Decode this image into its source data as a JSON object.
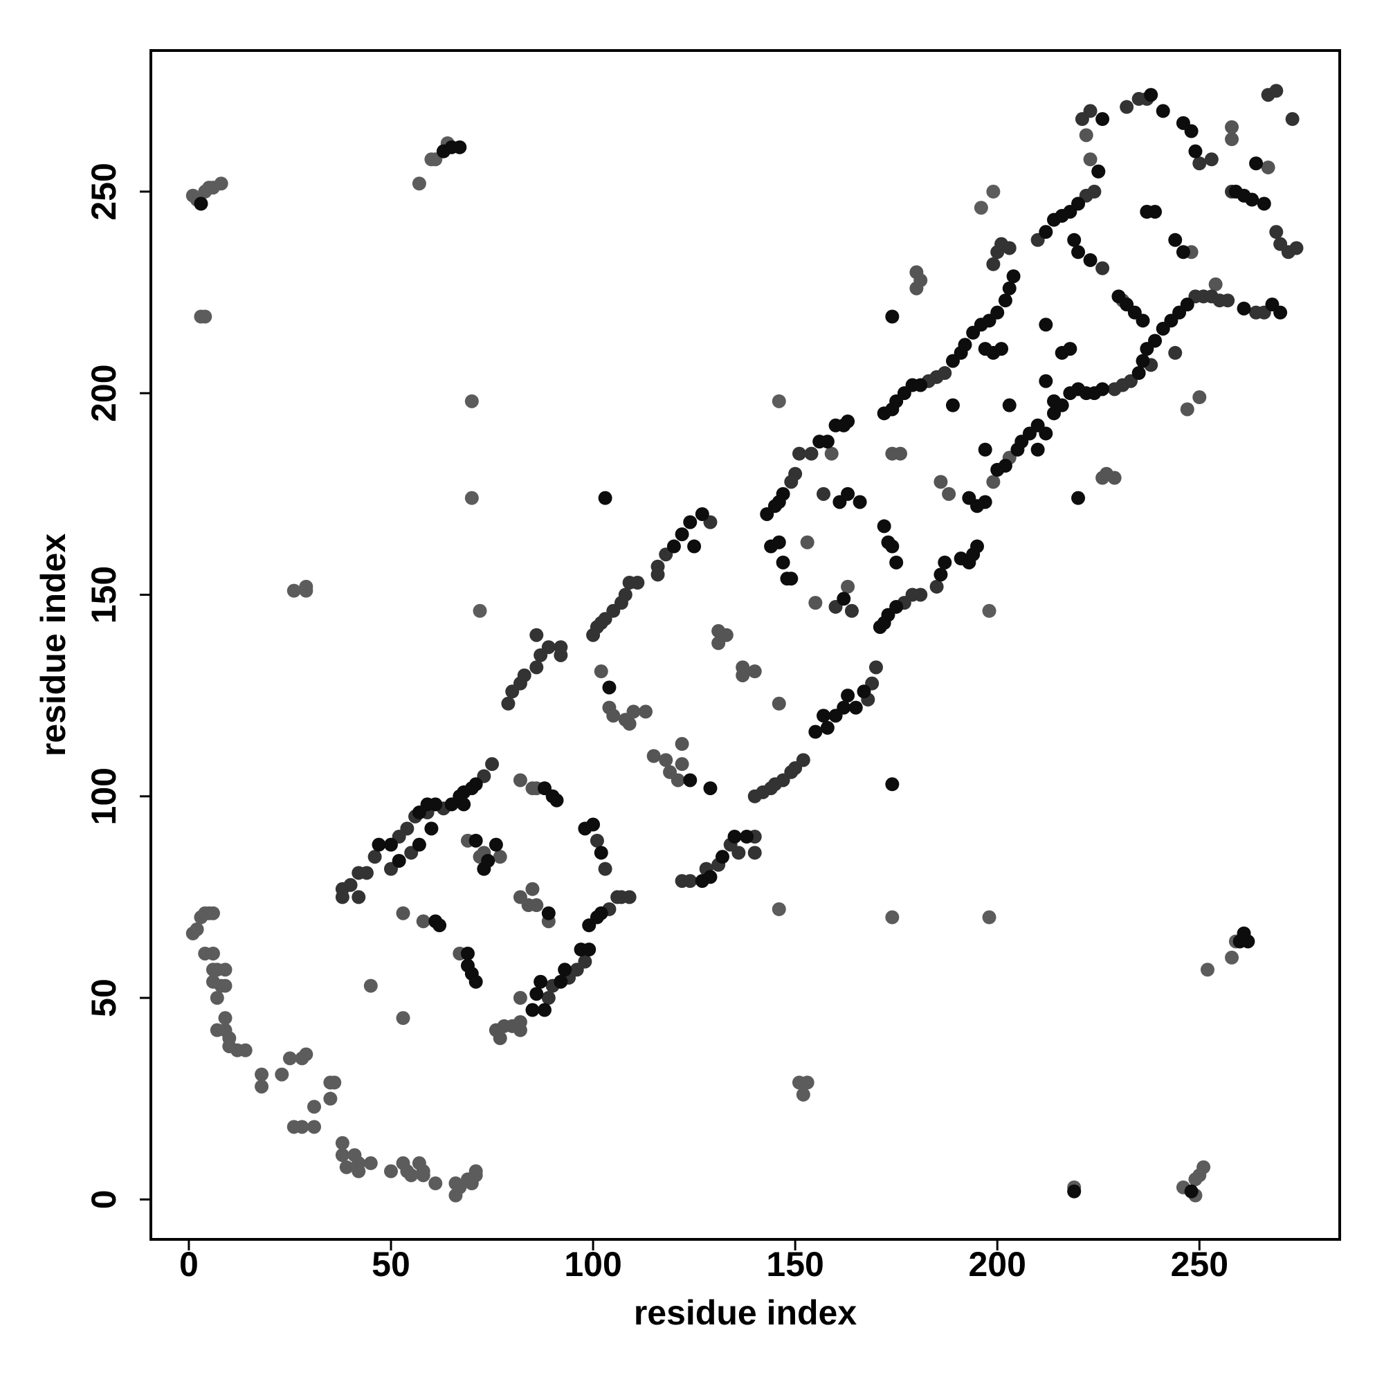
{
  "chart_data": {
    "type": "scatter",
    "xlabel": "residue index",
    "ylabel": "residue index",
    "xlim": [
      -9.4,
      284.7
    ],
    "ylim": [
      -9.9,
      285
    ],
    "xticks": [
      0,
      50,
      100,
      150,
      200,
      250
    ],
    "yticks": [
      0,
      50,
      100,
      150,
      200,
      250
    ],
    "series": [
      {
        "color": "#5c5c5c",
        "x": [
          1,
          2,
          3,
          4,
          5,
          6,
          4,
          6,
          6,
          7,
          6,
          8,
          9,
          9,
          7,
          7,
          9,
          9,
          10,
          10,
          12,
          14,
          18,
          18,
          23,
          25,
          28,
          29,
          26,
          28,
          31,
          31,
          35,
          36,
          35,
          38,
          38,
          39,
          41,
          42,
          42,
          45,
          50,
          53,
          54,
          55,
          57,
          58,
          58,
          61,
          66,
          66,
          67,
          69,
          70,
          71,
          71,
          1,
          2,
          3,
          4,
          5,
          6,
          8,
          3,
          4,
          57,
          60,
          61,
          63,
          64,
          26,
          29,
          29,
          70,
          70,
          72,
          219,
          246,
          249,
          249,
          250,
          251,
          252,
          258,
          259,
          152,
          153,
          151,
          146,
          174,
          198,
          198,
          146,
          196,
          199,
          45,
          53
        ],
        "values": [
          66,
          67,
          70,
          71,
          71,
          71,
          61,
          61,
          57,
          57,
          54,
          53,
          57,
          53,
          50,
          42,
          42,
          45,
          40,
          38,
          37,
          37,
          31,
          28,
          31,
          35,
          35,
          36,
          18,
          18,
          18,
          23,
          29,
          29,
          25,
          14,
          11,
          8,
          11,
          9,
          7,
          9,
          7,
          9,
          7,
          6,
          9,
          6,
          7,
          4,
          1,
          4,
          3,
          5,
          4,
          6,
          7,
          249,
          248,
          247,
          250,
          251,
          251,
          252,
          219,
          219,
          252,
          258,
          258,
          260,
          262,
          151,
          152,
          151,
          198,
          174,
          146,
          3,
          3,
          1,
          5,
          6,
          8,
          57,
          60,
          64,
          26,
          29,
          29,
          72,
          70,
          70,
          146,
          198,
          246,
          250,
          53,
          45
        ]
      },
      {
        "color": "#555555",
        "x": [
          53,
          58,
          67,
          69,
          72,
          73,
          77,
          82,
          85,
          86,
          82,
          84,
          85,
          86,
          89,
          76,
          77,
          78,
          80,
          82,
          82,
          82,
          102,
          104,
          105,
          108,
          109,
          110,
          113,
          115,
          118,
          119,
          122,
          122,
          121,
          131,
          133,
          131,
          137,
          140,
          137,
          146,
          155,
          163,
          153,
          159,
          174,
          176,
          180,
          180,
          181,
          186,
          188,
          199,
          203,
          222,
          223,
          225,
          258,
          258,
          267,
          226,
          229,
          227,
          254,
          247,
          250,
          231,
          237,
          248
        ],
        "values": [
          71,
          69,
          61,
          89,
          85,
          86,
          85,
          104,
          102,
          102,
          75,
          73,
          77,
          73,
          69,
          42,
          40,
          43,
          43,
          42,
          44,
          50,
          131,
          122,
          120,
          119,
          118,
          121,
          121,
          110,
          109,
          106,
          108,
          113,
          104,
          141,
          140,
          138,
          132,
          131,
          130,
          123,
          148,
          152,
          163,
          185,
          185,
          185,
          230,
          226,
          228,
          178,
          175,
          178,
          184,
          264,
          258,
          255,
          266,
          263,
          256,
          179,
          179,
          180,
          227,
          196,
          199,
          223,
          245,
          235
        ]
      },
      {
        "color": "#333333",
        "x": [
          38,
          40,
          42,
          44,
          46,
          52,
          54,
          56,
          38,
          42,
          50,
          55,
          73,
          75,
          79,
          80,
          82,
          83,
          86,
          87,
          89,
          92,
          92,
          86,
          100,
          101,
          102,
          103,
          105,
          107,
          108,
          109,
          111,
          122,
          124,
          128,
          131,
          134,
          136,
          140,
          140,
          140,
          142,
          144,
          145,
          147,
          149,
          150,
          152,
          116,
          118,
          116,
          129,
          149,
          150,
          151,
          154,
          157,
          160,
          164,
          168,
          169,
          170,
          177,
          179,
          181,
          185,
          183,
          185,
          187,
          199,
          200,
          201,
          203,
          210,
          222,
          224,
          221,
          223,
          226,
          229,
          231,
          233,
          249,
          251,
          253,
          255,
          257,
          264,
          266,
          232,
          235,
          237,
          250,
          253,
          258,
          269,
          270,
          272,
          274,
          267,
          269,
          273,
          238,
          244,
          96,
          94,
          98,
          104,
          106,
          107,
          109,
          101,
          103,
          63,
          59,
          90,
          89
        ],
        "values": [
          77,
          78,
          81,
          81,
          85,
          90,
          92,
          95,
          75,
          75,
          82,
          86,
          105,
          108,
          123,
          126,
          128,
          130,
          132,
          135,
          137,
          135,
          137,
          140,
          140,
          142,
          143,
          144,
          146,
          148,
          150,
          153,
          153,
          79,
          79,
          82,
          83,
          88,
          86,
          90,
          86,
          100,
          101,
          102,
          103,
          104,
          106,
          107,
          109,
          157,
          160,
          155,
          168,
          178,
          180,
          185,
          185,
          175,
          147,
          146,
          124,
          128,
          132,
          148,
          150,
          150,
          152,
          203,
          204,
          205,
          232,
          235,
          237,
          236,
          238,
          249,
          250,
          268,
          270,
          231,
          201,
          202,
          203,
          224,
          224,
          224,
          223,
          223,
          220,
          220,
          271,
          273,
          273,
          257,
          258,
          250,
          240,
          237,
          235,
          236,
          274,
          275,
          268,
          207,
          210,
          57,
          55,
          59,
          72,
          75,
          75,
          75,
          89,
          82,
          97,
          96,
          53,
          50
        ]
      },
      {
        "color": "#0d0d0d",
        "x": [
          47,
          50,
          57,
          59,
          61,
          65,
          67,
          68,
          70,
          71,
          52,
          57,
          60,
          68,
          61,
          62,
          69,
          69,
          70,
          71,
          71,
          74,
          73,
          76,
          88,
          90,
          91,
          89,
          85,
          86,
          87,
          88,
          92,
          93,
          97,
          99,
          99,
          101,
          102,
          98,
          100,
          102,
          104,
          127,
          129,
          132,
          135,
          138,
          124,
          129,
          120,
          122,
          124,
          127,
          125,
          143,
          145,
          146,
          147,
          160,
          162,
          163,
          144,
          146,
          147,
          149,
          148,
          161,
          163,
          166,
          156,
          158,
          162,
          172,
          173,
          174,
          175,
          155,
          157,
          158,
          160,
          162,
          163,
          165,
          167,
          171,
          172,
          173,
          175,
          186,
          187,
          172,
          174,
          175,
          177,
          179,
          181,
          189,
          191,
          192,
          194,
          196,
          198,
          200,
          202,
          203,
          204,
          174,
          189,
          193,
          195,
          197,
          197,
          200,
          202,
          205,
          206,
          208,
          210,
          191,
          193,
          194,
          195,
          197,
          199,
          201,
          203,
          210,
          212,
          214,
          212,
          214,
          216,
          218,
          220,
          225,
          226,
          219,
          220,
          223,
          212,
          218,
          216,
          212,
          214,
          216,
          218,
          220,
          222,
          224,
          226,
          235,
          236,
          237,
          239,
          241,
          243,
          245,
          247,
          261,
          268,
          270,
          230,
          232,
          234,
          236,
          238,
          241,
          246,
          248,
          249,
          259,
          261,
          263,
          266,
          264,
          237,
          239,
          244,
          246,
          220,
          219,
          248,
          260,
          261,
          262,
          63,
          65,
          67,
          3,
          174,
          103
        ],
        "values": [
          88,
          88,
          96,
          98,
          98,
          98,
          100,
          101,
          102,
          103,
          84,
          88,
          92,
          98,
          69,
          68,
          61,
          58,
          56,
          54,
          89,
          84,
          82,
          88,
          102,
          100,
          99,
          71,
          47,
          51,
          54,
          47,
          54,
          57,
          62,
          62,
          68,
          70,
          71,
          92,
          93,
          86,
          127,
          79,
          80,
          85,
          90,
          90,
          104,
          102,
          162,
          165,
          168,
          170,
          162,
          170,
          172,
          173,
          175,
          192,
          192,
          193,
          162,
          163,
          158,
          154,
          154,
          173,
          175,
          173,
          188,
          188,
          149,
          167,
          163,
          162,
          158,
          116,
          120,
          117,
          120,
          122,
          125,
          122,
          126,
          142,
          143,
          145,
          147,
          155,
          158,
          195,
          196,
          198,
          200,
          202,
          202,
          208,
          210,
          212,
          215,
          217,
          218,
          220,
          223,
          226,
          229,
          219,
          197,
          174,
          172,
          173,
          186,
          181,
          182,
          186,
          188,
          190,
          186,
          159,
          158,
          160,
          162,
          211,
          210,
          211,
          197,
          192,
          190,
          195,
          240,
          243,
          244,
          245,
          247,
          255,
          268,
          238,
          235,
          233,
          217,
          211,
          210,
          203,
          198,
          197,
          200,
          201,
          200,
          200,
          201,
          205,
          208,
          211,
          213,
          216,
          218,
          220,
          222,
          221,
          222,
          220,
          224,
          222,
          220,
          218,
          274,
          270,
          267,
          265,
          260,
          250,
          249,
          248,
          247,
          257,
          245,
          245,
          238,
          235,
          174,
          2,
          2,
          64,
          66,
          64,
          260,
          261,
          261,
          247,
          103,
          174
        ]
      }
    ]
  }
}
